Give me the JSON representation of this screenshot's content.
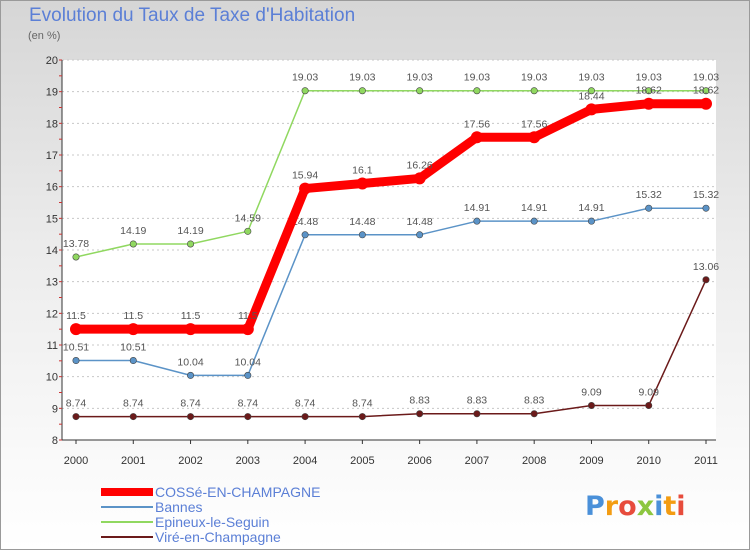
{
  "header": {
    "title": "Evolution du Taux de Taxe d'Habitation",
    "units": "(en %)"
  },
  "logo_text": "Proxiti",
  "chart_data": {
    "type": "line",
    "title": "Evolution du Taux de Taxe d'Habitation",
    "ylabel": "(en %)",
    "x": [
      "2000",
      "2001",
      "2002",
      "2003",
      "2004",
      "2005",
      "2006",
      "2007",
      "2008",
      "2009",
      "2010",
      "2011"
    ],
    "ylim": [
      8,
      20
    ],
    "yticks": [
      8,
      9,
      10,
      11,
      12,
      13,
      14,
      15,
      16,
      17,
      18,
      19,
      20
    ],
    "grid": "horizontal dashed",
    "legend_position": "bottom-left",
    "series": [
      {
        "name": "Viré-en-Champagne",
        "color": "#6b1a1a",
        "values": [
          8.74,
          8.74,
          8.74,
          8.74,
          8.74,
          8.74,
          8.83,
          8.83,
          8.83,
          9.09,
          9.09,
          13.06
        ],
        "labels": [
          "8.74",
          "8.74",
          "8.74",
          "8.74",
          "8.74",
          "8.74",
          "8.83",
          "8.83",
          "8.83",
          "9.09",
          "9.09",
          "13.06"
        ]
      },
      {
        "name": "Bannes",
        "color": "#5b93c7",
        "values": [
          10.51,
          10.51,
          10.04,
          10.04,
          14.48,
          14.48,
          14.48,
          14.91,
          14.91,
          14.91,
          15.32,
          15.32
        ],
        "labels": [
          "10.51",
          "10.51",
          "10.04",
          "10.04",
          "14.48",
          "14.48",
          "14.48",
          "14.91",
          "14.91",
          "14.91",
          "15.32",
          "15.32"
        ]
      },
      {
        "name": "Epineux-le-Seguin",
        "color": "#90d860",
        "values": [
          13.78,
          14.19,
          14.19,
          14.59,
          19.03,
          19.03,
          19.03,
          19.03,
          19.03,
          19.03,
          19.03,
          19.03
        ],
        "labels": [
          "13.78",
          "14.19",
          "14.19",
          "14.59",
          "19.03",
          "19.03",
          "19.03",
          "19.03",
          "19.03",
          "19.03",
          "19.03",
          "19.03"
        ]
      },
      {
        "name": "COSSé-EN-CHAMPAGNE",
        "color": "#ff0000",
        "values": [
          11.5,
          11.5,
          11.5,
          11.5,
          15.94,
          16.1,
          16.26,
          17.56,
          17.56,
          18.44,
          18.62,
          18.62
        ],
        "labels": [
          "11.5",
          "11.5",
          "11.5",
          "11.5",
          "15.94",
          "16.1",
          "16.26",
          "17.56",
          "17.56",
          "18.44",
          "18.62",
          "18.62"
        ]
      }
    ]
  },
  "legend": [
    {
      "label": "COSSé-EN-CHAMPAGNE",
      "color": "#ff0000",
      "thickness": "thick"
    },
    {
      "label": "Bannes",
      "color": "#5b93c7",
      "thickness": "thin"
    },
    {
      "label": "Epineux-le-Seguin",
      "color": "#90d860",
      "thickness": "thin"
    },
    {
      "label": "Viré-en-Champagne",
      "color": "#6b1a1a",
      "thickness": "thin"
    }
  ]
}
